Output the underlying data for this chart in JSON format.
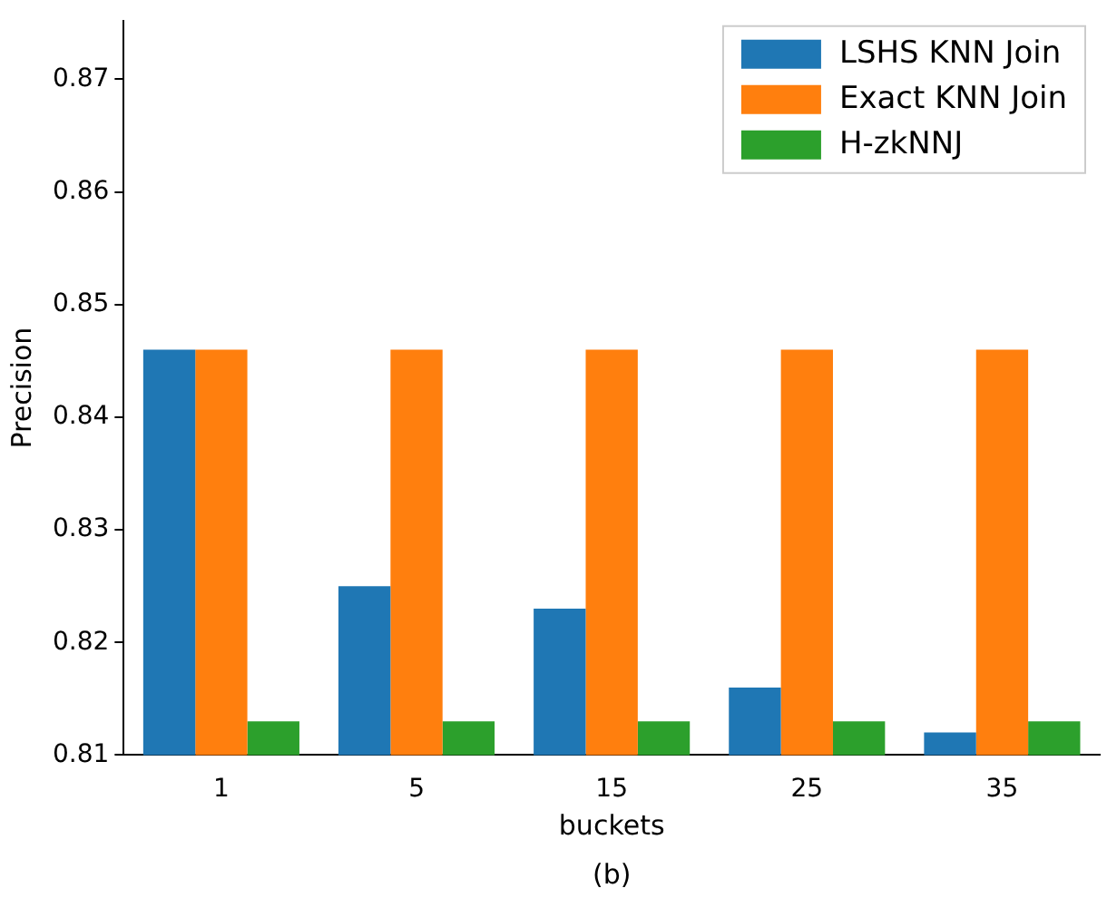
{
  "chart_data": {
    "type": "bar",
    "xlabel": "buckets",
    "ylabel": "Precision",
    "categories": [
      "1",
      "5",
      "15",
      "25",
      "35"
    ],
    "series": [
      {
        "name": "LSHS KNN Join",
        "color": "#1f77b4",
        "values": [
          0.846,
          0.825,
          0.823,
          0.816,
          0.812
        ]
      },
      {
        "name": "Exact KNN Join",
        "color": "#ff7f0e",
        "values": [
          0.846,
          0.846,
          0.846,
          0.846,
          0.846
        ]
      },
      {
        "name": "H-zkNNJ",
        "color": "#2ca02c",
        "values": [
          0.813,
          0.813,
          0.813,
          0.813,
          0.813
        ]
      }
    ],
    "ylim": [
      0.81,
      0.8752
    ],
    "yticks": [
      0.81,
      0.82,
      0.83,
      0.84,
      0.85,
      0.86,
      0.87
    ],
    "grid": false,
    "legend": "top right",
    "annotations": [
      "(b)"
    ]
  }
}
